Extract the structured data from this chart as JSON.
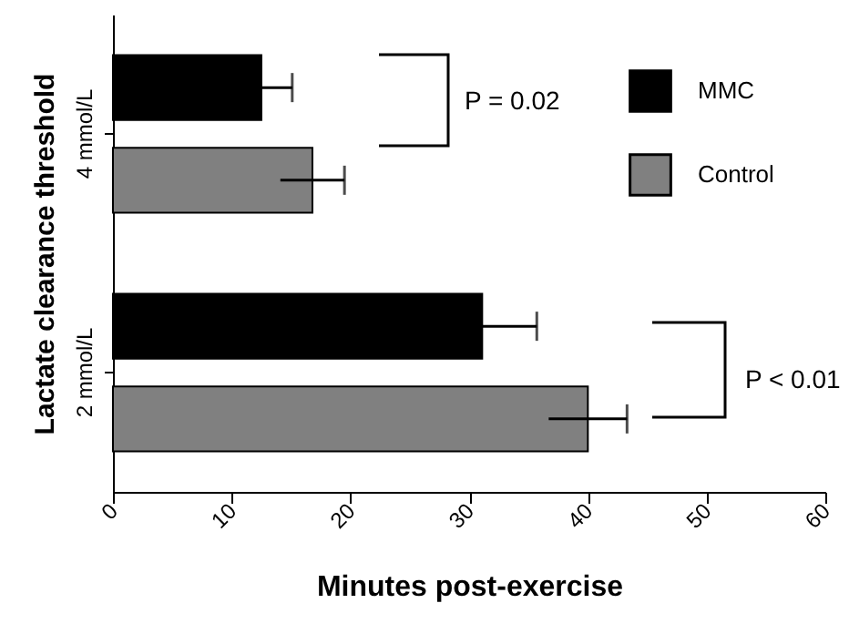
{
  "chart_data": {
    "type": "bar",
    "orientation": "horizontal",
    "xlabel": "Minutes post-exercise",
    "ylabel": "Lactate clearance threshold",
    "categories": [
      "4 mmol/L",
      "2 mmol/L"
    ],
    "series": [
      {
        "name": "MMC",
        "color": "#000000",
        "values": [
          12.5,
          31.1
        ],
        "errors": [
          2.6,
          4.6
        ]
      },
      {
        "name": "Control",
        "color": "#808080",
        "values": [
          16.8,
          40
        ],
        "errors": [
          2.7,
          3.3
        ]
      }
    ],
    "xlim": [
      0,
      60
    ],
    "xticks": [
      0,
      10,
      20,
      30,
      40,
      50,
      60
    ],
    "legend": "top right",
    "grid": false,
    "annotations": [
      "P = 0.02",
      "P < 0.01"
    ]
  }
}
